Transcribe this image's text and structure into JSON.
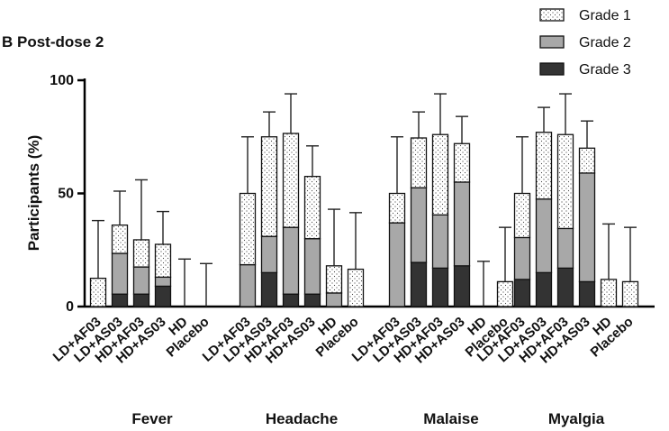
{
  "chart_data": {
    "type": "bar",
    "stacked": true,
    "title": "B Post-dose 2",
    "ylabel": "Participants (%)",
    "ylim": [
      0,
      100
    ],
    "yticks": [
      0,
      50,
      100
    ],
    "categories": [
      "LD+AF03",
      "LD+AS03",
      "HD+AF03",
      "HD+AS03",
      "HD",
      "Placebo"
    ],
    "groups": [
      "Fever",
      "Headache",
      "Malaise",
      "Myalgia"
    ],
    "series_names": [
      "Grade 1",
      "Grade 2",
      "Grade 3"
    ],
    "legend_position": "top-right",
    "colors": {
      "grade1": "#ffffff",
      "grade2": "#a8a8a8",
      "grade3": "#333333",
      "axis": "#000000"
    },
    "data": [
      {
        "group": "Fever",
        "grade3": [
          0,
          5.5,
          5.5,
          9,
          0,
          0
        ],
        "grade2": [
          0,
          18,
          12,
          4,
          0,
          0
        ],
        "grade1": [
          12.5,
          12.5,
          12,
          14.5,
          0,
          0
        ],
        "error": [
          38,
          51,
          56,
          42,
          21,
          19
        ]
      },
      {
        "group": "Headache",
        "grade3": [
          0,
          15,
          5.5,
          5.5,
          0,
          0
        ],
        "grade2": [
          18.5,
          16,
          29.5,
          24.5,
          6,
          0
        ],
        "grade1": [
          31.5,
          44,
          41.5,
          27.5,
          12,
          16.5
        ],
        "error": [
          75,
          86,
          94,
          71,
          43,
          41.5
        ]
      },
      {
        "group": "Malaise",
        "grade3": [
          0,
          19.5,
          17,
          18,
          0,
          0
        ],
        "grade2": [
          37,
          33,
          23.5,
          37,
          0,
          0
        ],
        "grade1": [
          13,
          22,
          35.5,
          17,
          0,
          11
        ],
        "error": [
          75,
          86,
          94,
          84,
          20,
          35
        ]
      },
      {
        "group": "Myalgia",
        "grade3": [
          12,
          15,
          17,
          11,
          0,
          0
        ],
        "grade2": [
          18.5,
          32.5,
          17.5,
          48,
          0,
          0
        ],
        "grade1": [
          19.5,
          29.5,
          41.5,
          11,
          12,
          11
        ],
        "error": [
          75,
          88,
          94,
          82,
          36.5,
          35
        ]
      }
    ]
  }
}
